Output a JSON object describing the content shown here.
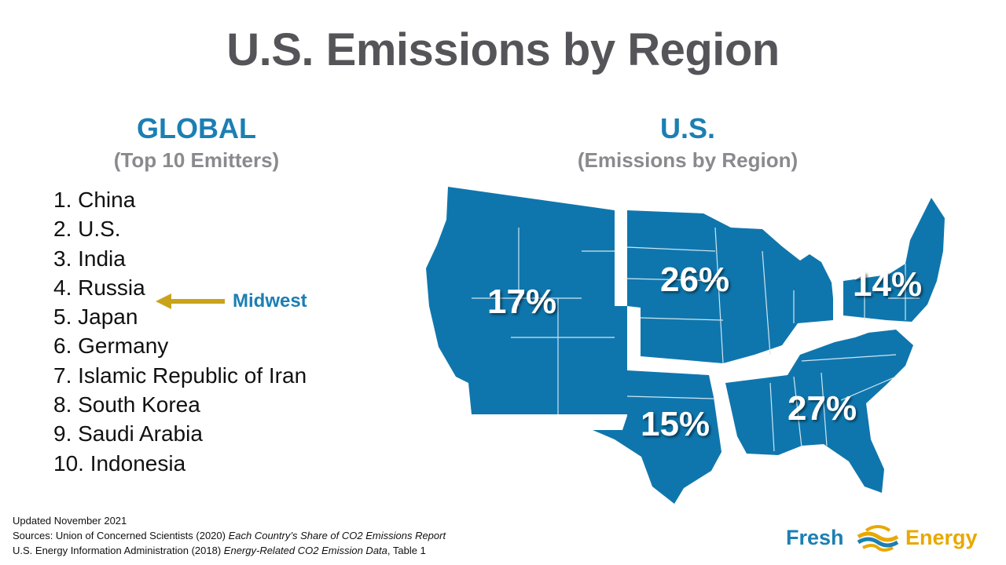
{
  "title": "U.S. Emissions by Region",
  "global": {
    "heading": "GLOBAL",
    "subheading": "(Top 10 Emitters)",
    "emitters": [
      "1. China",
      "2. U.S.",
      "3. India",
      "4. Russia",
      "5. Japan",
      "6. Germany",
      "7. Islamic Republic of Iran",
      "8. South Korea",
      "9. Saudi Arabia",
      "10. Indonesia"
    ],
    "callout": {
      "label": "Midwest",
      "arrow_color": "#c9a41a"
    }
  },
  "us": {
    "heading": "U.S.",
    "subheading": "(Emissions by Region)",
    "regions": {
      "west": "17%",
      "midwest": "26%",
      "northeast": "14%",
      "southwest": "15%",
      "southeast": "27%"
    },
    "map_color": "#0f76ad"
  },
  "sources": {
    "updated": "Updated November 2021",
    "line1_prefix": "Sources: Union of Concerned Scientists (2020) ",
    "line1_italic": "Each Country’s Share of CO2 Emissions Report",
    "line2_prefix": "U.S. Energy Information Administration (2018) ",
    "line2_italic": "Energy-Related CO2 Emission Data",
    "line2_suffix": ", Table 1"
  },
  "logo": {
    "word1": "Fresh",
    "word2": "Energy",
    "blue": "#1b7fb3",
    "gold": "#e8a800"
  },
  "colors": {
    "title": "#555559",
    "accent": "#1b7fb3",
    "muted": "#8a8a8e"
  }
}
